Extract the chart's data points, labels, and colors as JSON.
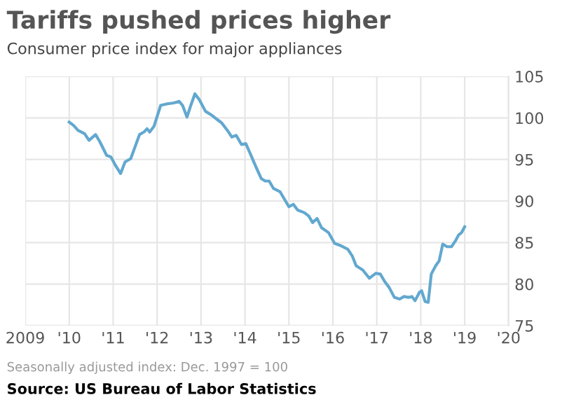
{
  "chart_data": {
    "type": "line",
    "title": "Tariffs pushed prices higher",
    "subtitle": "Consumer price index for major appliances",
    "annotations": [
      "Seasonally adjusted index: Dec. 1997 = 100",
      "Source: US Bureau of Labor Statistics"
    ],
    "x": [
      2010.0,
      2010.1,
      2010.2,
      2010.35,
      2010.45,
      2010.6,
      2010.7,
      2010.85,
      2010.95,
      2011.05,
      2011.17,
      2011.27,
      2011.4,
      2011.6,
      2011.7,
      2011.77,
      2011.83,
      2011.93,
      2012.08,
      2012.23,
      2012.38,
      2012.5,
      2012.58,
      2012.68,
      2012.76,
      2012.86,
      2012.96,
      2013.1,
      2013.25,
      2013.37,
      2013.47,
      2013.6,
      2013.7,
      2013.8,
      2013.92,
      2014.02,
      2014.12,
      2014.25,
      2014.37,
      2014.46,
      2014.55,
      2014.65,
      2014.8,
      2015.0,
      2015.1,
      2015.2,
      2015.35,
      2015.45,
      2015.54,
      2015.64,
      2015.74,
      2015.9,
      2016.04,
      2016.19,
      2016.34,
      2016.44,
      2016.53,
      2016.68,
      2016.83,
      2016.98,
      2017.08,
      2017.18,
      2017.28,
      2017.4,
      2017.52,
      2017.62,
      2017.72,
      2017.8,
      2017.87,
      2017.97,
      2018.02,
      2018.1,
      2018.17,
      2018.24,
      2018.34,
      2018.42,
      2018.5,
      2018.6,
      2018.7,
      2018.79,
      2018.86,
      2018.93,
      2019.0
    ],
    "series": [
      {
        "color": "#62a8cf",
        "values": [
          99.5,
          99.1,
          98.5,
          98.1,
          97.3,
          98.0,
          97.1,
          95.5,
          95.3,
          94.3,
          93.3,
          94.7,
          95.1,
          98.0,
          98.3,
          98.7,
          98.3,
          99.0,
          101.5,
          101.7,
          101.8,
          102.0,
          101.5,
          100.1,
          101.4,
          102.9,
          102.2,
          100.8,
          100.3,
          99.8,
          99.4,
          98.5,
          97.7,
          97.9,
          96.8,
          96.9,
          95.7,
          94.1,
          92.7,
          92.4,
          92.4,
          91.5,
          91.1,
          89.3,
          89.6,
          88.9,
          88.6,
          88.2,
          87.4,
          87.9,
          86.8,
          86.2,
          84.9,
          84.6,
          84.2,
          83.4,
          82.2,
          81.7,
          80.7,
          81.3,
          81.2,
          80.3,
          79.6,
          78.4,
          78.2,
          78.5,
          78.4,
          78.5,
          78.0,
          79.0,
          79.2,
          77.9,
          77.8,
          81.2,
          82.2,
          82.8,
          84.8,
          84.5,
          84.5,
          85.2,
          85.9,
          86.2,
          86.9
        ]
      }
    ],
    "xlim": [
      2009,
      2020
    ],
    "xticks": [
      2009,
      {
        "value": 2010,
        "label": "'10"
      },
      {
        "value": 2011,
        "label": "'11"
      },
      {
        "value": 2012,
        "label": "'12"
      },
      {
        "value": 2013,
        "label": "'13"
      },
      {
        "value": 2014,
        "label": "'14"
      },
      {
        "value": 2015,
        "label": "'15"
      },
      {
        "value": 2016,
        "label": "'16"
      },
      {
        "value": 2017,
        "label": "'17"
      },
      {
        "value": 2018,
        "label": "'18"
      },
      {
        "value": 2019,
        "label": "'19"
      },
      {
        "value": 2020,
        "label": "'20"
      }
    ],
    "ylim": [
      75,
      105
    ],
    "yticks": [
      75,
      80,
      85,
      90,
      95,
      100,
      105
    ],
    "grid": true,
    "line_style": "solid",
    "marker": "none"
  }
}
